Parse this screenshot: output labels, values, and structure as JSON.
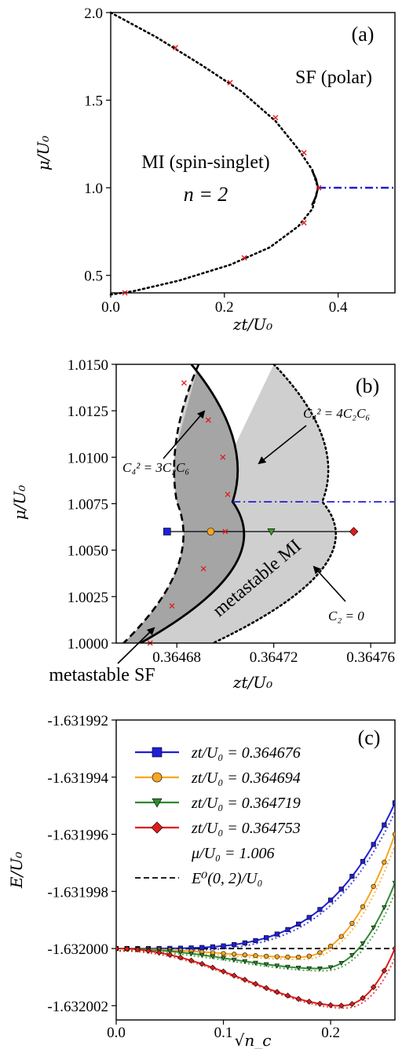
{
  "chart_data": [
    {
      "type": "line",
      "panel_label": "(a)",
      "xlabel": "zt/U₀",
      "ylabel": "μ/U₀",
      "xlim": [
        0.0,
        0.5
      ],
      "ylim": [
        0.4,
        2.0
      ],
      "xticks": [
        "0.0",
        "0.2",
        "0.4"
      ],
      "yticks": [
        "0.5",
        "1.0",
        "1.5",
        "2.0"
      ],
      "annotations": [
        "SF (polar)",
        "MI (spin-singlet)",
        "n = 2"
      ],
      "curves": {
        "boundary_dotted": {
          "zt": [
            0.0,
            0.08,
            0.16,
            0.23,
            0.29,
            0.33,
            0.355,
            0.3647,
            0.355,
            0.33,
            0.28,
            0.21,
            0.12,
            0.04,
            0.0
          ],
          "mu": [
            2.0,
            1.86,
            1.7,
            1.55,
            1.38,
            1.22,
            1.1,
            1.0,
            0.88,
            0.78,
            0.66,
            0.56,
            0.47,
            0.41,
            0.39
          ]
        },
        "boundary_solid": {
          "zt": [
            0.354,
            0.361,
            0.3647,
            0.361,
            0.354
          ],
          "mu": [
            1.1,
            1.05,
            1.0,
            0.95,
            0.9
          ]
        },
        "dashdot_line": {
          "zt": [
            0.3647,
            0.5
          ],
          "mu": [
            1.0,
            1.0
          ]
        },
        "red_markers": {
          "zt": [
            0.114,
            0.21,
            0.29,
            0.34,
            0.366,
            0.34,
            0.235,
            0.025
          ],
          "mu": [
            1.8,
            1.6,
            1.4,
            1.2,
            1.0,
            0.8,
            0.6,
            0.4
          ]
        }
      }
    },
    {
      "type": "line",
      "panel_label": "(b)",
      "xlabel": "zt/U₀",
      "ylabel": "μ/U₀",
      "xlim": [
        0.364655,
        0.36477
      ],
      "ylim": [
        1.0,
        1.015
      ],
      "xticks": [
        "0.36468",
        "0.36472",
        "0.36476"
      ],
      "yticks": [
        "1.0000",
        "1.0025",
        "1.0050",
        "1.0075",
        "1.0100",
        "1.0125",
        "1.0150"
      ],
      "annotations": {
        "dashed": "C₄² = 3C₂C₆",
        "solid": "C₄² = 4C₂C₆",
        "dotted": "C₂ = 0",
        "region_mi": "metastable MI",
        "region_sf": "metastable SF"
      },
      "curves": {
        "dashed": {
          "zt": [
            0.364658,
            0.36468,
            0.364689
          ],
          "mu_extent": [
            1.0,
            1.015
          ]
        },
        "solid": {
          "zt": [
            0.364665,
            0.364703,
            0.364686
          ],
          "mu_extent": [
            1.0,
            1.015
          ]
        },
        "dotted": {
          "zt": [
            0.364695,
            0.36474,
            0.36472
          ],
          "mu_extent": [
            1.0,
            1.015
          ]
        },
        "dashdot_mu": 1.0076,
        "hline": {
          "mu": 1.006,
          "zt": [
            0.364676,
            0.364753
          ]
        },
        "red_markers": {
          "zt": [
            0.364683,
            0.364693,
            0.364699,
            0.364701,
            0.3647,
            0.364691,
            0.364678,
            0.364669
          ],
          "mu": [
            1.014,
            1.012,
            1.01,
            1.008,
            1.006,
            1.004,
            1.002,
            1.0
          ]
        },
        "points": [
          {
            "zt": 0.364676,
            "marker": "square",
            "color": "#1f1fd6"
          },
          {
            "zt": 0.364694,
            "marker": "circle",
            "color": "#f5a623"
          },
          {
            "zt": 0.364719,
            "marker": "triangle",
            "color": "#3a9a2a"
          },
          {
            "zt": 0.364753,
            "marker": "diamond",
            "color": "#e01b1b"
          }
        ]
      }
    },
    {
      "type": "line",
      "panel_label": "(c)",
      "xlabel": "√n_c",
      "ylabel": "E/U₀",
      "xlim": [
        0.0,
        0.26
      ],
      "ylim": [
        -1.6320025,
        -1.631992
      ],
      "xticks": [
        "0.0",
        "0.1",
        "0.2"
      ],
      "yticks": [
        "-1.631992",
        "-1.631994",
        "-1.631996",
        "-1.631998",
        "-1.632000",
        "-1.632002"
      ],
      "legend_position": "top-right",
      "legend_extra": [
        "μ/U₀ = 1.006",
        "E⁰(0, 2)/U₀"
      ],
      "reference_E": -1.632,
      "series": [
        {
          "name": "zt/U₀ = 0.364676",
          "color": "#1f1fd6",
          "marker": "square",
          "E_min": -1.632,
          "x_min": 0.0,
          "E_end": -1.6319949
        },
        {
          "name": "zt/U₀ = 0.364694",
          "color": "#f5a623",
          "marker": "circle",
          "E_min": -1.6320003,
          "x_min": 0.17,
          "E_end": -1.631996
        },
        {
          "name": "zt/U₀ = 0.364719",
          "color": "#2e8b2e",
          "marker": "triangle",
          "E_min": -1.6320007,
          "x_min": 0.19,
          "E_end": -1.6319977
        },
        {
          "name": "zt/U₀ = 0.364753",
          "color": "#e01b1b",
          "marker": "diamond",
          "E_min": -1.632002,
          "x_min": 0.21,
          "E_end": -1.632
        }
      ]
    }
  ]
}
